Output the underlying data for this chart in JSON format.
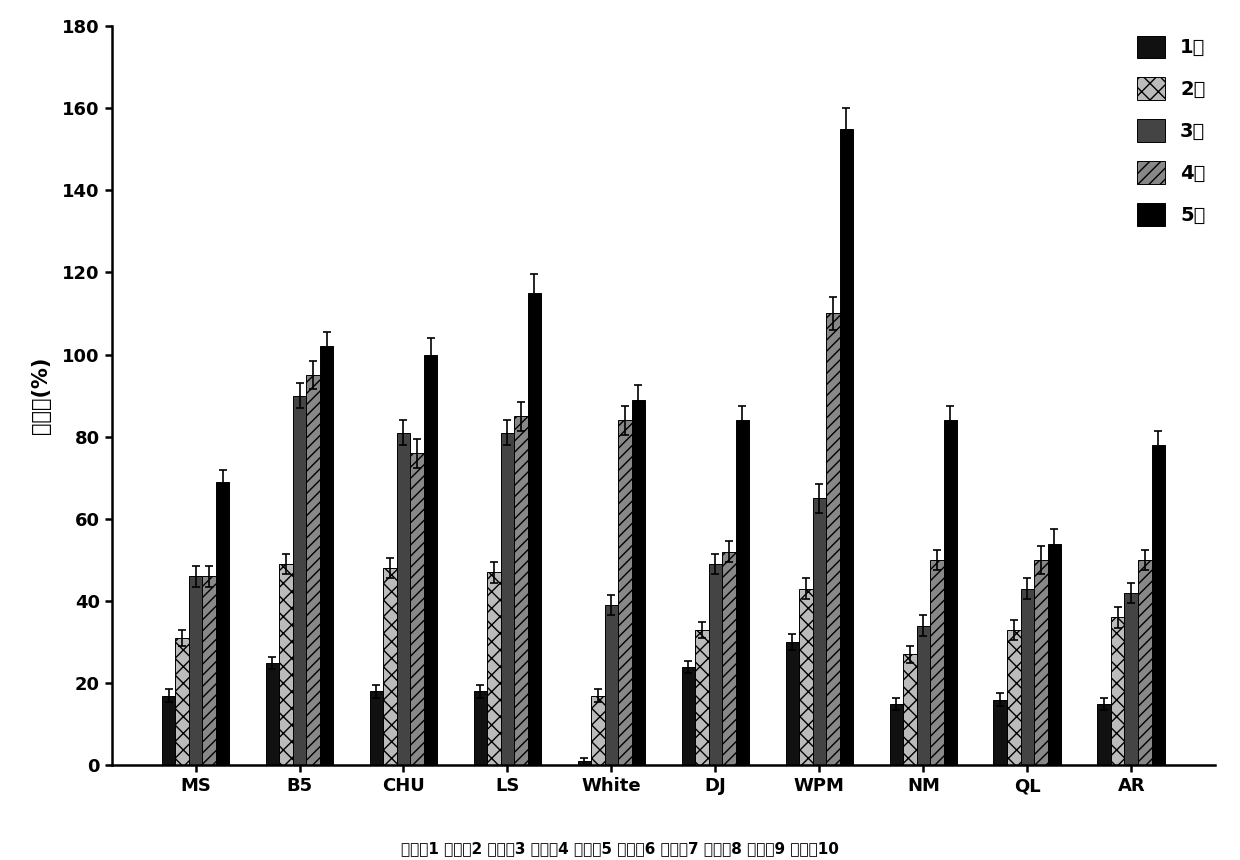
{
  "categories": [
    "MS",
    "B5",
    "CHU",
    "LS",
    "White",
    "DJ",
    "WPM",
    "NM",
    "QL",
    "AR"
  ],
  "subcategories_cn": [
    "培养基1",
    "培养基2",
    "培养基3",
    "培养基4",
    "培养基5",
    "培养基6",
    "培养基7",
    "培养基8",
    "培养基9",
    "培养基10"
  ],
  "legend_labels_correct": [
    "1周",
    "2周",
    "3周",
    "4周",
    "5周"
  ],
  "weeks": {
    "week1": [
      17,
      25,
      18,
      18,
      1,
      24,
      30,
      15,
      16,
      15
    ],
    "week2": [
      31,
      49,
      48,
      47,
      17,
      33,
      43,
      27,
      33,
      36
    ],
    "week3": [
      46,
      90,
      81,
      81,
      39,
      49,
      65,
      34,
      43,
      42
    ],
    "week4": [
      46,
      95,
      76,
      85,
      84,
      52,
      110,
      50,
      50,
      50
    ],
    "week5": [
      69,
      102,
      100,
      115,
      89,
      84,
      155,
      84,
      54,
      78
    ]
  },
  "errors": {
    "week1": [
      1.5,
      1.5,
      1.5,
      1.5,
      0.8,
      1.5,
      2,
      1.5,
      1.5,
      1.5
    ],
    "week2": [
      2,
      2.5,
      2.5,
      2.5,
      1.5,
      2,
      2.5,
      2,
      2.5,
      2.5
    ],
    "week3": [
      2.5,
      3,
      3,
      3,
      2.5,
      2.5,
      3.5,
      2.5,
      2.5,
      2.5
    ],
    "week4": [
      2.5,
      3.5,
      3.5,
      3.5,
      3.5,
      2.5,
      4,
      2.5,
      3.5,
      2.5
    ],
    "week5": [
      3,
      3.5,
      4,
      4.5,
      3.5,
      3.5,
      5,
      3.5,
      3.5,
      3.5
    ]
  },
  "ylabel": "生长率(%)",
  "ylim": [
    0,
    180
  ],
  "yticks": [
    0,
    20,
    40,
    60,
    80,
    100,
    120,
    140,
    160,
    180
  ],
  "bar_width": 0.13,
  "bg_color": "#ffffff"
}
